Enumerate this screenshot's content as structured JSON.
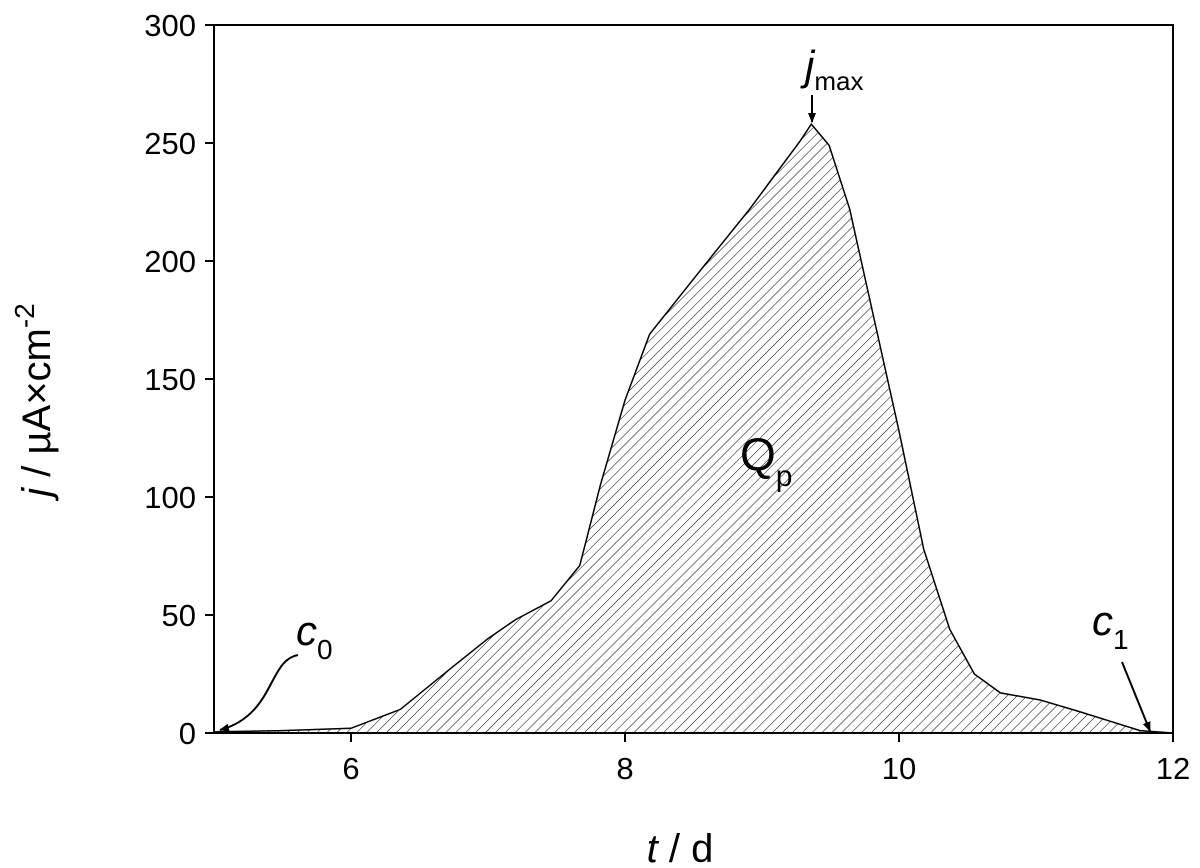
{
  "chart_data": {
    "type": "area",
    "x": [
      5.0,
      5.5,
      6.0,
      6.36,
      6.72,
      7.0,
      7.2,
      7.46,
      7.67,
      7.82,
      8.0,
      8.18,
      8.55,
      8.91,
      9.28,
      9.36,
      9.49,
      9.64,
      9.82,
      10.0,
      10.18,
      10.37,
      10.55,
      10.74,
      11.03,
      11.32,
      11.54,
      11.76,
      12.0
    ],
    "values": [
      0.5,
      1,
      2,
      10,
      27,
      40,
      48,
      56,
      71,
      105,
      141,
      169,
      196,
      222,
      251,
      258,
      249,
      222,
      175,
      128,
      78,
      44,
      25,
      17,
      14,
      9,
      5,
      1,
      0
    ],
    "color": "#000000",
    "xlabel": [
      "t",
      " / d"
    ],
    "ylabel": [
      "j",
      " / µA×cm",
      "-2"
    ],
    "xlim": [
      5,
      12
    ],
    "xticks": [
      6,
      8,
      10,
      12
    ],
    "ylim": [
      0,
      300
    ],
    "yticks": [
      0,
      50,
      100,
      150,
      200,
      250,
      300
    ],
    "annotations": {
      "c0": [
        "c",
        "0"
      ],
      "c1": [
        "c",
        "1"
      ],
      "jmax": [
        "j",
        "max"
      ],
      "qp": [
        "Q",
        "p"
      ]
    }
  }
}
